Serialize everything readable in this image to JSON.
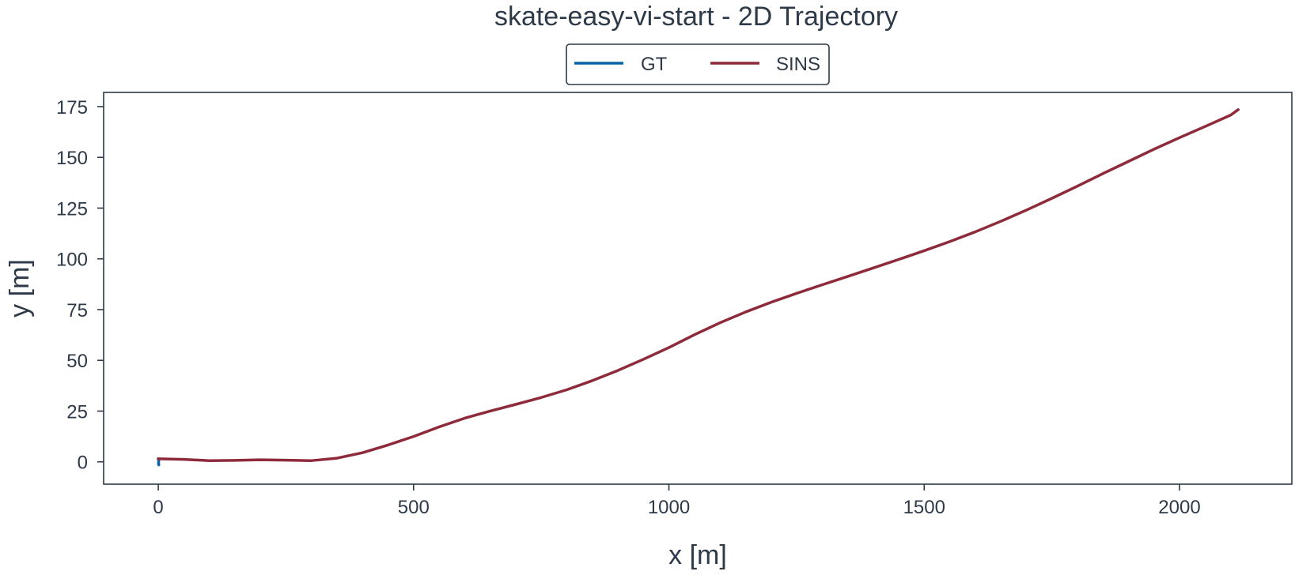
{
  "chart_data": {
    "type": "line",
    "title": "skate-easy-vi-start - 2D Trajectory",
    "xlabel": "x [m]",
    "ylabel": "y [m]",
    "xlim": [
      -107,
      2220
    ],
    "ylim": [
      -11,
      182
    ],
    "xticks": [
      0,
      500,
      1000,
      1500,
      2000
    ],
    "yticks": [
      0,
      25,
      50,
      75,
      100,
      125,
      150,
      175
    ],
    "grid": false,
    "legend": {
      "placement": "top-center-outside",
      "frame": true
    },
    "series": [
      {
        "name": "GT",
        "color": "#0a63a8",
        "points": [
          [
            0,
            1.5
          ],
          [
            1,
            0.5
          ],
          [
            0.5,
            -0.5
          ],
          [
            1,
            -1.5
          ],
          [
            0.5,
            -1.0
          ]
        ]
      },
      {
        "name": "SINS",
        "color": "#8e2a3a",
        "points": [
          [
            0,
            1.5
          ],
          [
            50,
            1.2
          ],
          [
            100,
            0.6
          ],
          [
            150,
            0.7
          ],
          [
            200,
            1.0
          ],
          [
            250,
            0.8
          ],
          [
            300,
            0.6
          ],
          [
            350,
            1.8
          ],
          [
            400,
            4.5
          ],
          [
            450,
            8.3
          ],
          [
            500,
            12.5
          ],
          [
            550,
            17.2
          ],
          [
            600,
            21.5
          ],
          [
            650,
            25.0
          ],
          [
            700,
            28.3
          ],
          [
            750,
            31.7
          ],
          [
            800,
            35.5
          ],
          [
            850,
            40.0
          ],
          [
            900,
            45.0
          ],
          [
            950,
            50.5
          ],
          [
            1000,
            56.3
          ],
          [
            1050,
            62.6
          ],
          [
            1100,
            68.5
          ],
          [
            1150,
            73.8
          ],
          [
            1200,
            78.6
          ],
          [
            1250,
            83.0
          ],
          [
            1300,
            87.2
          ],
          [
            1350,
            91.3
          ],
          [
            1400,
            95.5
          ],
          [
            1450,
            99.7
          ],
          [
            1500,
            104.0
          ],
          [
            1550,
            108.5
          ],
          [
            1600,
            113.3
          ],
          [
            1650,
            118.5
          ],
          [
            1700,
            124.0
          ],
          [
            1750,
            129.8
          ],
          [
            1800,
            135.8
          ],
          [
            1850,
            142.0
          ],
          [
            1900,
            148.0
          ],
          [
            1950,
            154.0
          ],
          [
            2000,
            159.7
          ],
          [
            2050,
            165.2
          ],
          [
            2100,
            170.8
          ],
          [
            2115,
            173.5
          ]
        ]
      }
    ]
  }
}
